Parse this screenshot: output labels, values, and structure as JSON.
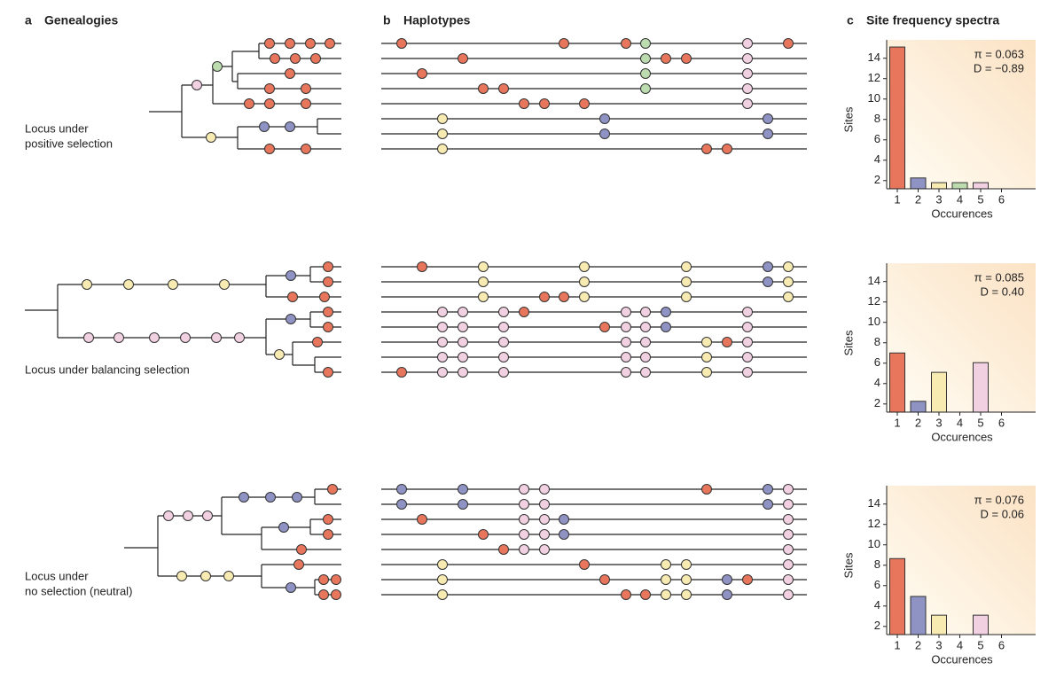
{
  "panels": [
    {
      "letter": "a",
      "title": "Genealogies"
    },
    {
      "letter": "b",
      "title": "Haplotypes"
    },
    {
      "letter": "c",
      "title": "Site frequency spectra"
    }
  ],
  "loci": [
    [
      "Locus under",
      "positive selection"
    ],
    [
      "Locus under balancing selection"
    ],
    [
      "Locus under",
      "no selection (neutral)"
    ]
  ],
  "chart_data": [
    {
      "type": "bar",
      "categories": [
        1,
        2,
        3,
        4,
        5,
        6
      ],
      "values": [
        15.1,
        2.26,
        1.8,
        1.8,
        1.8,
        null
      ],
      "colors": [
        "#e8765c",
        "#8f93c4",
        "#f8ebb2",
        "#bcdcb0",
        "#f1d0e2",
        "#cccccc"
      ],
      "ylim": [
        1.2,
        15.8
      ],
      "yticks": [
        2,
        4,
        6,
        8,
        10,
        12,
        14
      ],
      "xlabel": "Occurences",
      "ylabel": "Sites",
      "annotations": [
        "π = 0.063",
        "D = −0.89"
      ]
    },
    {
      "type": "bar",
      "categories": [
        1,
        2,
        3,
        4,
        5,
        6
      ],
      "values": [
        7.0,
        2.26,
        5.1,
        null,
        6.05,
        null
      ],
      "colors": [
        "#e8765c",
        "#8f93c4",
        "#f8ebb2",
        "#bcdcb0",
        "#f1d0e2",
        "#cccccc"
      ],
      "ylim": [
        1.2,
        15.8
      ],
      "yticks": [
        2,
        4,
        6,
        8,
        10,
        12,
        14
      ],
      "xlabel": "Occurences",
      "ylabel": "Sites",
      "annotations": [
        "π = 0.085",
        "D = 0.40"
      ]
    },
    {
      "type": "bar",
      "categories": [
        1,
        2,
        3,
        4,
        5,
        6
      ],
      "values": [
        8.65,
        4.94,
        3.1,
        null,
        3.1,
        null
      ],
      "colors": [
        "#e8765c",
        "#8f93c4",
        "#f8ebb2",
        "#bcdcb0",
        "#f1d0e2",
        "#cccccc"
      ],
      "ylim": [
        1.2,
        15.8
      ],
      "yticks": [
        2,
        4,
        6,
        8,
        10,
        12,
        14
      ],
      "xlabel": "Occurences",
      "ylabel": "Sites",
      "annotations": [
        "π = 0.076",
        "D = 0.06"
      ]
    }
  ]
}
